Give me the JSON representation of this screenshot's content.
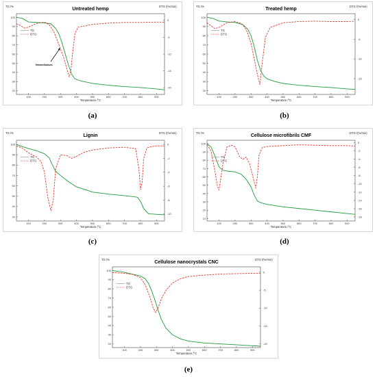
{
  "colors": {
    "tg": "#1f9a3a",
    "dtg": "#e0392b",
    "frame": "#444444"
  },
  "chart_data": [
    {
      "type": "line",
      "caption": "(a)",
      "title": "Untreated hemp",
      "xlabel": "Temperature /°C",
      "ylabel_left": "TG /%",
      "ylabel_right": "DTG /(%/min)",
      "xticks": [
        100,
        200,
        300,
        400,
        500,
        600,
        700,
        800,
        900
      ],
      "yticks_left": [
        20,
        30,
        40,
        50,
        60,
        70,
        80,
        90,
        100
      ],
      "yticks_right": [
        0,
        -5,
        -10,
        -15,
        -20
      ],
      "xlim": [
        25,
        950
      ],
      "ylim_left": [
        16,
        104
      ],
      "ylim_right": [
        -22,
        2
      ],
      "legend": [
        "TG",
        "DTG"
      ],
      "annotation": "Hemicelluloses",
      "series": [
        {
          "name": "TG",
          "axis": "left",
          "x": [
            25,
            60,
            100,
            150,
            200,
            240,
            270,
            290,
            310,
            330,
            350,
            370,
            390,
            420,
            500,
            600,
            700,
            800,
            900,
            950
          ],
          "y": [
            100,
            99,
            95,
            94.5,
            94,
            93,
            88,
            82,
            72,
            60,
            48,
            38,
            33,
            31,
            28,
            26,
            24.5,
            23.5,
            22,
            21
          ]
        },
        {
          "name": "DTG",
          "axis": "right",
          "x": [
            25,
            50,
            75,
            100,
            150,
            200,
            230,
            260,
            280,
            300,
            320,
            340,
            355,
            365,
            375,
            390,
            410,
            500,
            600,
            700,
            800,
            900,
            950
          ],
          "y": [
            -1,
            -1.5,
            -2.3,
            -2.0,
            -0.9,
            -0.5,
            -1.3,
            -3.5,
            -6.0,
            -8.5,
            -11,
            -14.5,
            -16.8,
            -15,
            -10,
            -4,
            -2,
            -1.2,
            -0.8,
            -0.6,
            -0.6,
            -0.5,
            -0.5
          ]
        }
      ]
    },
    {
      "type": "line",
      "caption": "(b)",
      "title": "Treated hemp",
      "xlabel": "Temperature /°C",
      "ylabel_left": "TG /%",
      "ylabel_right": "DTG /(%/min)",
      "xticks": [
        100,
        200,
        300,
        400,
        500,
        600,
        700,
        800,
        900
      ],
      "yticks_left": [
        20,
        30,
        40,
        50,
        60,
        70,
        80,
        90,
        100
      ],
      "yticks_right": [
        0,
        -5,
        -10,
        -15
      ],
      "xlim": [
        25,
        950
      ],
      "ylim_left": [
        16,
        104
      ],
      "ylim_right": [
        -19,
        1.5
      ],
      "legend": [
        "TG",
        "DTG"
      ],
      "series": [
        {
          "name": "TG",
          "axis": "left",
          "x": [
            25,
            60,
            100,
            150,
            200,
            250,
            280,
            300,
            320,
            340,
            360,
            380,
            400,
            450,
            500,
            600,
            700,
            800,
            900,
            950
          ],
          "y": [
            100,
            99,
            96,
            95,
            94.5,
            92,
            87,
            80,
            68,
            53,
            42,
            36,
            33,
            30,
            28,
            26,
            24.5,
            23.5,
            22,
            21.5
          ]
        },
        {
          "name": "DTG",
          "axis": "right",
          "x": [
            25,
            50,
            75,
            100,
            150,
            200,
            240,
            270,
            300,
            320,
            340,
            355,
            370,
            390,
            420,
            500,
            600,
            700,
            800,
            900,
            950
          ],
          "y": [
            -0.8,
            -1.6,
            -2.3,
            -2.0,
            -0.8,
            -0.5,
            -1.0,
            -2.5,
            -6,
            -10,
            -14,
            -16.5,
            -11,
            -4.5,
            -2,
            -0.8,
            -0.5,
            -0.4,
            -0.5,
            -0.5,
            -0.4
          ]
        }
      ]
    },
    {
      "type": "line",
      "caption": "(c)",
      "title": "Lignin",
      "xlabel": "Temperature /°C",
      "ylabel_left": "TG /%",
      "ylabel_right": "DTG /(%/min)",
      "xticks": [
        100,
        200,
        300,
        400,
        500,
        600,
        700,
        800,
        900
      ],
      "yticks_left": [
        30,
        40,
        50,
        60,
        70,
        80,
        90,
        100
      ],
      "yticks_right": [
        0,
        -2,
        -4,
        -6,
        -8,
        -10
      ],
      "xlim": [
        25,
        950
      ],
      "ylim_left": [
        26,
        104
      ],
      "ylim_right": [
        -11,
        0.6
      ],
      "legend": [
        "TG",
        "DTG"
      ],
      "series": [
        {
          "name": "TG",
          "axis": "left",
          "x": [
            25,
            60,
            100,
            150,
            200,
            230,
            250,
            270,
            300,
            350,
            400,
            500,
            600,
            700,
            780,
            800,
            820,
            850,
            900,
            950
          ],
          "y": [
            100,
            98,
            96,
            94,
            91,
            87,
            80,
            74,
            70,
            64,
            59,
            54,
            52,
            50.5,
            49,
            45,
            38,
            33,
            32.5,
            32
          ]
        },
        {
          "name": "DTG",
          "axis": "right",
          "x": [
            25,
            60,
            100,
            150,
            180,
            200,
            220,
            240,
            255,
            270,
            300,
            340,
            370,
            400,
            450,
            500,
            600,
            700,
            770,
            790,
            800,
            810,
            820,
            840,
            870,
            900,
            950
          ],
          "y": [
            -0.2,
            -0.5,
            -1.2,
            -1.8,
            -2.5,
            -4.0,
            -7.5,
            -9.5,
            -8.0,
            -3.5,
            -1.5,
            -1.6,
            -2.0,
            -1.7,
            -1.1,
            -0.8,
            -0.5,
            -0.4,
            -0.6,
            -3.5,
            -6.5,
            -5.5,
            -2,
            -0.5,
            -0.3,
            -0.2,
            -0.2
          ]
        }
      ]
    },
    {
      "type": "line",
      "caption": "(d)",
      "title": "Cellulose microfibrils CMF",
      "xlabel": "Temperature /°C",
      "ylabel_left": "TG /%",
      "ylabel_right": "DTG /(%/min)",
      "xticks": [
        100,
        200,
        300,
        400,
        500,
        600,
        700,
        800,
        900
      ],
      "yticks_left": [
        10,
        20,
        30,
        40,
        50,
        60,
        70,
        80,
        90,
        100
      ],
      "yticks_right": [
        0,
        -2,
        -4,
        -6,
        -8,
        -10,
        -12,
        -14,
        -16,
        -18
      ],
      "xlim": [
        25,
        950
      ],
      "ylim_left": [
        7,
        104
      ],
      "ylim_right": [
        -19,
        0.6
      ],
      "legend": [
        "TG",
        "DTG"
      ],
      "series": [
        {
          "name": "TG",
          "axis": "left",
          "x": [
            25,
            50,
            75,
            100,
            125,
            150,
            200,
            240,
            270,
            300,
            320,
            340,
            360,
            400,
            500,
            600,
            700,
            800,
            900,
            950
          ],
          "y": [
            100,
            96,
            85,
            72,
            68,
            67,
            66,
            63,
            57,
            48,
            38,
            31,
            29,
            27,
            24,
            22,
            20,
            18,
            16,
            15
          ]
        },
        {
          "name": "DTG",
          "axis": "right",
          "x": [
            25,
            50,
            75,
            90,
            100,
            125,
            150,
            180,
            200,
            230,
            250,
            270,
            290,
            310,
            330,
            340,
            350,
            370,
            400,
            500,
            600,
            700,
            800,
            900,
            950
          ],
          "y": [
            -0.5,
            -2,
            -7,
            -10.5,
            -11.5,
            -5,
            -1.0,
            -0.6,
            -1.0,
            -3.5,
            -4.0,
            -3.5,
            -5,
            -8,
            -11,
            -8,
            -3,
            -1.2,
            -0.9,
            -0.7,
            -0.5,
            -0.6,
            -0.7,
            -0.7,
            -0.8
          ]
        }
      ]
    },
    {
      "type": "line",
      "caption": "(e)",
      "title": "Cellulose nanocrystals CNC",
      "xlabel": "Temperature /°C",
      "ylabel_left": "TG /%",
      "ylabel_right": "DTG /(%/min)",
      "xticks": [
        100,
        200,
        300,
        400,
        500,
        600,
        700,
        800,
        900
      ],
      "yticks_left": [
        20,
        30,
        40,
        50,
        60,
        70,
        80,
        90,
        100
      ],
      "yticks_right": [
        0,
        -5,
        -10,
        -15,
        -20
      ],
      "xlim": [
        25,
        950
      ],
      "ylim_left": [
        16,
        104
      ],
      "ylim_right": [
        -21,
        1.5
      ],
      "legend": [
        "TG",
        "DTG"
      ],
      "series": [
        {
          "name": "TG",
          "axis": "left",
          "x": [
            25,
            60,
            100,
            150,
            200,
            230,
            250,
            270,
            290,
            310,
            330,
            360,
            400,
            450,
            500,
            600,
            700,
            800,
            900,
            950
          ],
          "y": [
            100,
            99,
            98,
            96,
            94,
            91,
            86,
            78,
            68,
            57,
            47,
            37,
            30,
            25.5,
            23,
            21,
            20,
            19,
            18,
            17.5
          ]
        },
        {
          "name": "DTG",
          "axis": "right",
          "x": [
            25,
            100,
            150,
            200,
            230,
            260,
            280,
            295,
            310,
            330,
            360,
            400,
            450,
            500,
            600,
            700,
            800,
            900,
            950
          ],
          "y": [
            -0.1,
            -0.3,
            -0.6,
            -1.5,
            -3.5,
            -7,
            -10,
            -11.2,
            -10,
            -7.5,
            -5,
            -3,
            -1.8,
            -1.2,
            -0.8,
            -0.5,
            -0.4,
            -0.3,
            -0.3
          ]
        }
      ]
    }
  ]
}
